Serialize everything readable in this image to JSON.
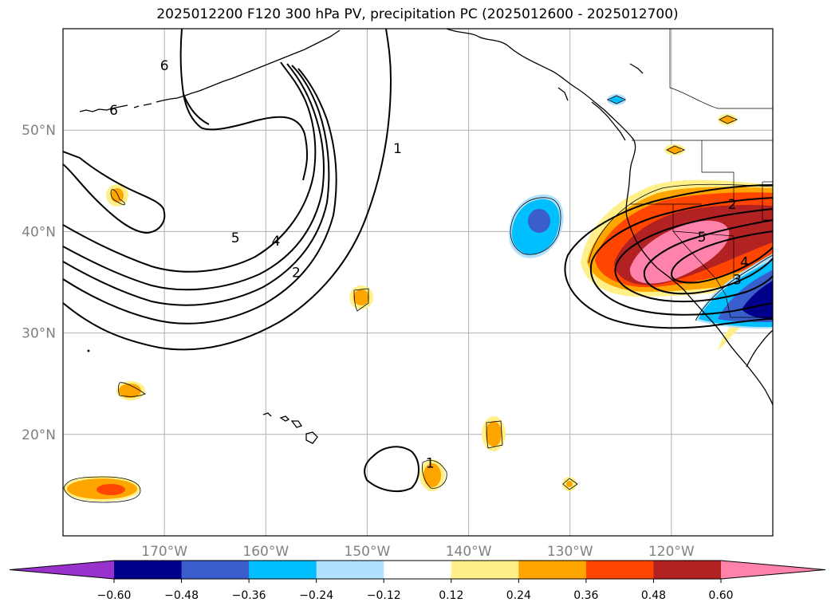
{
  "title": "2025012200 F120 300 hPa PV, precipitation PC (2025012600 - 2025012700)",
  "map": {
    "projection": "equirectangular (Mercator-like)",
    "lon_range": [
      -180,
      -110
    ],
    "lat_range": [
      10,
      60
    ],
    "grid": true,
    "lon_ticks": [
      {
        "value": -170,
        "label": "170°W"
      },
      {
        "value": -160,
        "label": "160°W"
      },
      {
        "value": -150,
        "label": "150°W"
      },
      {
        "value": -140,
        "label": "140°W"
      },
      {
        "value": -130,
        "label": "130°W"
      },
      {
        "value": -120,
        "label": "120°W"
      }
    ],
    "lat_ticks": [
      {
        "value": 20,
        "label": "20°N"
      },
      {
        "value": 30,
        "label": "30°N"
      },
      {
        "value": 40,
        "label": "40°N"
      },
      {
        "value": 50,
        "label": "50°N"
      }
    ],
    "pv_contour_labels": [
      {
        "text": "6",
        "lon": -170,
        "lat": 56.0
      },
      {
        "text": "6",
        "lon": -175,
        "lat": 51.6
      },
      {
        "text": "1",
        "lon": -147,
        "lat": 47.8
      },
      {
        "text": "5",
        "lon": -163,
        "lat": 39.0
      },
      {
        "text": "4",
        "lon": -159,
        "lat": 38.7
      },
      {
        "text": "2",
        "lon": -157,
        "lat": 35.6
      },
      {
        "text": "2",
        "lon": -114,
        "lat": 42.3
      },
      {
        "text": "5",
        "lon": -117,
        "lat": 39.1
      },
      {
        "text": "4",
        "lon": -112.8,
        "lat": 36.6
      },
      {
        "text": "3",
        "lon": -113.5,
        "lat": 34.9
      },
      {
        "text": "1",
        "lon": -143.8,
        "lat": 16.8
      }
    ]
  },
  "colorbar": {
    "colors": [
      "#9932cc",
      "#00008b",
      "#3a5fcd",
      "#00bfff",
      "#b0e2ff",
      "#ffffff",
      "#fff08a",
      "#ffa500",
      "#ff4500",
      "#b22222",
      "#ff82ab"
    ],
    "tick_labels": [
      "−0.60",
      "−0.48",
      "−0.36",
      "−0.24",
      "−0.12",
      "0.12",
      "0.24",
      "0.36",
      "0.48",
      "0.60"
    ]
  }
}
